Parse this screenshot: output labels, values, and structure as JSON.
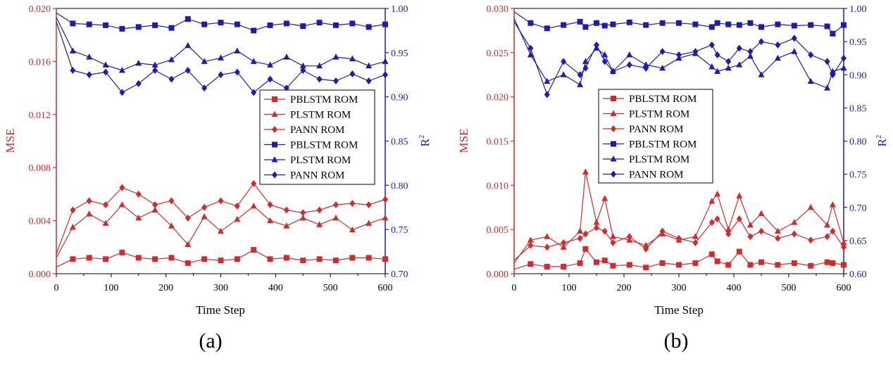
{
  "colors": {
    "mse": "#d42a2a",
    "r2": "#1c1cb4",
    "axis": "#000000"
  },
  "charts": [
    {
      "panel_label": "(a)",
      "xlabel": "Time Step",
      "ylabel_left": "MSE",
      "ylabel_right": "R",
      "ylabel_right_sup": "2",
      "xticks": [
        "0",
        "100",
        "200",
        "300",
        "400",
        "500",
        "600"
      ],
      "yticks_left": [
        "0.000",
        "0.004",
        "0.008",
        "0.012",
        "0.016",
        "0.020"
      ],
      "yticks_right": [
        "0.70",
        "0.75",
        "0.80",
        "0.85",
        "0.90",
        "0.95",
        "1.00"
      ],
      "legend": [
        "PBLSTM ROM",
        "PLSTM ROM",
        "PANN ROM",
        "PBLSTM ROM",
        "PLSTM ROM",
        "PANN ROM"
      ]
    },
    {
      "panel_label": "(b)",
      "xlabel": "Time Step",
      "ylabel_left": "MSE",
      "ylabel_right": "R",
      "ylabel_right_sup": "2",
      "xticks": [
        "0",
        "100",
        "200",
        "300",
        "400",
        "500",
        "600"
      ],
      "yticks_left": [
        "0.000",
        "0.005",
        "0.010",
        "0.015",
        "0.020",
        "0.025",
        "0.030"
      ],
      "yticks_right": [
        "0.60",
        "0.65",
        "0.70",
        "0.75",
        "0.80",
        "0.85",
        "0.90",
        "0.95",
        "1.00"
      ],
      "legend": [
        "PBLSTM ROM",
        "PLSTM ROM",
        "PANN ROM",
        "PBLSTM ROM",
        "PLSTM ROM",
        "PANN ROM"
      ]
    }
  ],
  "chart_data": [
    {
      "type": "line",
      "xlim": [
        0,
        600
      ],
      "ylim_left": [
        0.0,
        0.02
      ],
      "ylim_right": [
        0.7,
        1.0
      ],
      "x": [
        0,
        30,
        60,
        90,
        120,
        150,
        180,
        210,
        240,
        270,
        300,
        330,
        360,
        390,
        420,
        450,
        480,
        510,
        540,
        570,
        600
      ],
      "series": [
        {
          "name": "PBLSTM ROM",
          "metric": "MSE",
          "axis": "left",
          "marker": "square",
          "values": [
            0.0005,
            0.0011,
            0.0012,
            0.0011,
            0.0016,
            0.0012,
            0.0011,
            0.0012,
            0.0008,
            0.0011,
            0.001,
            0.0011,
            0.0018,
            0.0011,
            0.0012,
            0.001,
            0.0011,
            0.001,
            0.0012,
            0.0012,
            0.0011
          ]
        },
        {
          "name": "PLSTM ROM",
          "metric": "MSE",
          "axis": "left",
          "marker": "triangle",
          "values": [
            0.0012,
            0.0035,
            0.0045,
            0.0038,
            0.0052,
            0.0042,
            0.0048,
            0.0036,
            0.0022,
            0.0043,
            0.0032,
            0.0041,
            0.0051,
            0.004,
            0.0036,
            0.0042,
            0.0037,
            0.0042,
            0.0033,
            0.0038,
            0.0042
          ]
        },
        {
          "name": "PANN ROM",
          "metric": "MSE",
          "axis": "left",
          "marker": "diamond",
          "values": [
            0.0015,
            0.0048,
            0.0055,
            0.0052,
            0.0065,
            0.006,
            0.0052,
            0.0055,
            0.0042,
            0.005,
            0.0055,
            0.0051,
            0.0068,
            0.0052,
            0.0048,
            0.0046,
            0.0048,
            0.0052,
            0.0053,
            0.0052,
            0.0056
          ]
        },
        {
          "name": "PBLSTM ROM",
          "metric": "R2",
          "axis": "right",
          "marker": "square",
          "values": [
            0.995,
            0.983,
            0.982,
            0.981,
            0.977,
            0.979,
            0.981,
            0.978,
            0.988,
            0.982,
            0.984,
            0.982,
            0.975,
            0.981,
            0.983,
            0.98,
            0.984,
            0.981,
            0.983,
            0.979,
            0.982
          ]
        },
        {
          "name": "PLSTM ROM",
          "metric": "R2",
          "axis": "right",
          "marker": "triangle",
          "values": [
            0.99,
            0.952,
            0.945,
            0.936,
            0.93,
            0.938,
            0.936,
            0.942,
            0.958,
            0.94,
            0.944,
            0.952,
            0.94,
            0.936,
            0.945,
            0.935,
            0.935,
            0.945,
            0.943,
            0.935,
            0.94
          ]
        },
        {
          "name": "PANN ROM",
          "metric": "R2",
          "axis": "right",
          "marker": "diamond",
          "values": [
            0.985,
            0.93,
            0.925,
            0.928,
            0.905,
            0.915,
            0.93,
            0.92,
            0.93,
            0.91,
            0.925,
            0.928,
            0.905,
            0.92,
            0.91,
            0.93,
            0.92,
            0.918,
            0.926,
            0.918,
            0.925
          ]
        }
      ]
    },
    {
      "type": "line",
      "xlim": [
        0,
        600
      ],
      "ylim_left": [
        0.0,
        0.03
      ],
      "ylim_right": [
        0.6,
        1.0
      ],
      "x": [
        0,
        30,
        60,
        90,
        120,
        130,
        150,
        165,
        180,
        210,
        240,
        270,
        300,
        330,
        360,
        370,
        390,
        410,
        430,
        450,
        480,
        510,
        540,
        570,
        580,
        600
      ],
      "series": [
        {
          "name": "PBLSTM ROM",
          "metric": "MSE",
          "axis": "left",
          "marker": "square",
          "values": [
            0.0005,
            0.0011,
            0.0008,
            0.0008,
            0.0012,
            0.0028,
            0.0013,
            0.0015,
            0.0009,
            0.001,
            0.0007,
            0.0012,
            0.001,
            0.0012,
            0.0022,
            0.0014,
            0.001,
            0.0025,
            0.001,
            0.0013,
            0.001,
            0.0012,
            0.0009,
            0.0013,
            0.0012,
            0.001
          ]
        },
        {
          "name": "PLSTM ROM",
          "metric": "MSE",
          "axis": "left",
          "marker": "triangle",
          "values": [
            0.0012,
            0.0038,
            0.0042,
            0.003,
            0.0048,
            0.0115,
            0.0058,
            0.0085,
            0.0042,
            0.0038,
            0.0032,
            0.0045,
            0.0038,
            0.0042,
            0.0082,
            0.009,
            0.005,
            0.0088,
            0.0055,
            0.0068,
            0.0048,
            0.0058,
            0.0075,
            0.0055,
            0.0078,
            0.0035
          ]
        },
        {
          "name": "PANN ROM",
          "metric": "MSE",
          "axis": "left",
          "marker": "diamond",
          "values": [
            0.0015,
            0.0032,
            0.003,
            0.0035,
            0.004,
            0.0045,
            0.0052,
            0.0048,
            0.0035,
            0.0042,
            0.0028,
            0.0048,
            0.004,
            0.0035,
            0.0058,
            0.0062,
            0.0045,
            0.0062,
            0.0042,
            0.0048,
            0.004,
            0.0045,
            0.0038,
            0.0042,
            0.0048,
            0.003
          ]
        },
        {
          "name": "PBLSTM ROM",
          "metric": "R2",
          "axis": "right",
          "marker": "square",
          "values": [
            0.995,
            0.978,
            0.97,
            0.975,
            0.98,
            0.972,
            0.978,
            0.974,
            0.976,
            0.979,
            0.975,
            0.978,
            0.978,
            0.976,
            0.972,
            0.978,
            0.976,
            0.975,
            0.978,
            0.972,
            0.976,
            0.974,
            0.975,
            0.973,
            0.962,
            0.975
          ]
        },
        {
          "name": "PLSTM ROM",
          "metric": "R2",
          "axis": "right",
          "marker": "triangle",
          "values": [
            0.985,
            0.93,
            0.89,
            0.9,
            0.885,
            0.92,
            0.94,
            0.93,
            0.905,
            0.93,
            0.915,
            0.91,
            0.925,
            0.932,
            0.912,
            0.905,
            0.91,
            0.915,
            0.928,
            0.9,
            0.925,
            0.935,
            0.89,
            0.88,
            0.905,
            0.91
          ]
        },
        {
          "name": "PANN ROM",
          "metric": "R2",
          "axis": "right",
          "marker": "diamond",
          "values": [
            0.98,
            0.94,
            0.87,
            0.92,
            0.9,
            0.91,
            0.945,
            0.92,
            0.905,
            0.915,
            0.91,
            0.935,
            0.93,
            0.935,
            0.945,
            0.93,
            0.92,
            0.94,
            0.935,
            0.95,
            0.945,
            0.955,
            0.93,
            0.92,
            0.9,
            0.925
          ]
        }
      ]
    }
  ]
}
